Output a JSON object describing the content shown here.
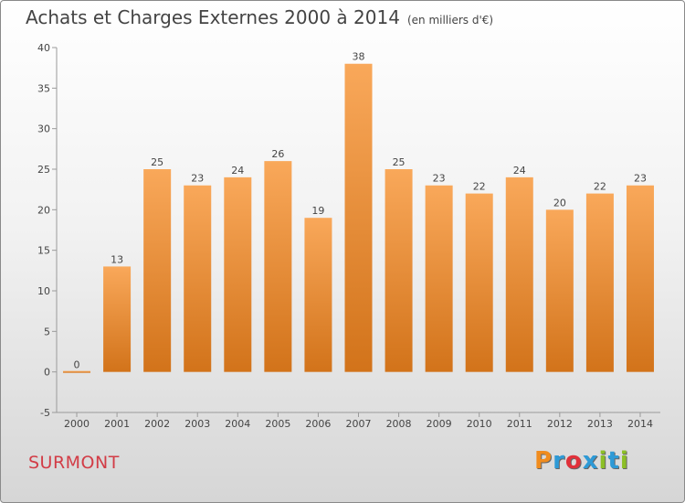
{
  "header": {
    "title": "Achats et Charges Externes 2000 à 2014",
    "subtitle": "(en milliers d'€)"
  },
  "footer": {
    "town": "SURMONT",
    "brand": "Proxiti",
    "brand_colors": [
      "#f08c1e",
      "#2e9ad6",
      "#e0313a",
      "#2e9ad6",
      "#8cbf26",
      "#2e9ad6",
      "#8cbf26"
    ]
  },
  "colors": {
    "bar_light": "#f9a85a",
    "bar_dark": "#d2731a",
    "town": "#d23c46"
  },
  "chart_data": {
    "type": "bar",
    "title": "Achats et Charges Externes 2000 à 2014",
    "subtitle": "(en milliers d'€)",
    "xlabel": "",
    "ylabel": "",
    "categories": [
      "2000",
      "2001",
      "2002",
      "2003",
      "2004",
      "2005",
      "2006",
      "2007",
      "2008",
      "2009",
      "2010",
      "2011",
      "2012",
      "2013",
      "2014"
    ],
    "values": [
      0,
      13,
      25,
      23,
      24,
      26,
      19,
      38,
      25,
      23,
      22,
      24,
      20,
      22,
      23
    ],
    "ylim": [
      -5,
      40
    ],
    "yticks": [
      -5,
      0,
      5,
      10,
      15,
      20,
      25,
      30,
      35,
      40
    ],
    "grid": false,
    "legend": "none"
  }
}
